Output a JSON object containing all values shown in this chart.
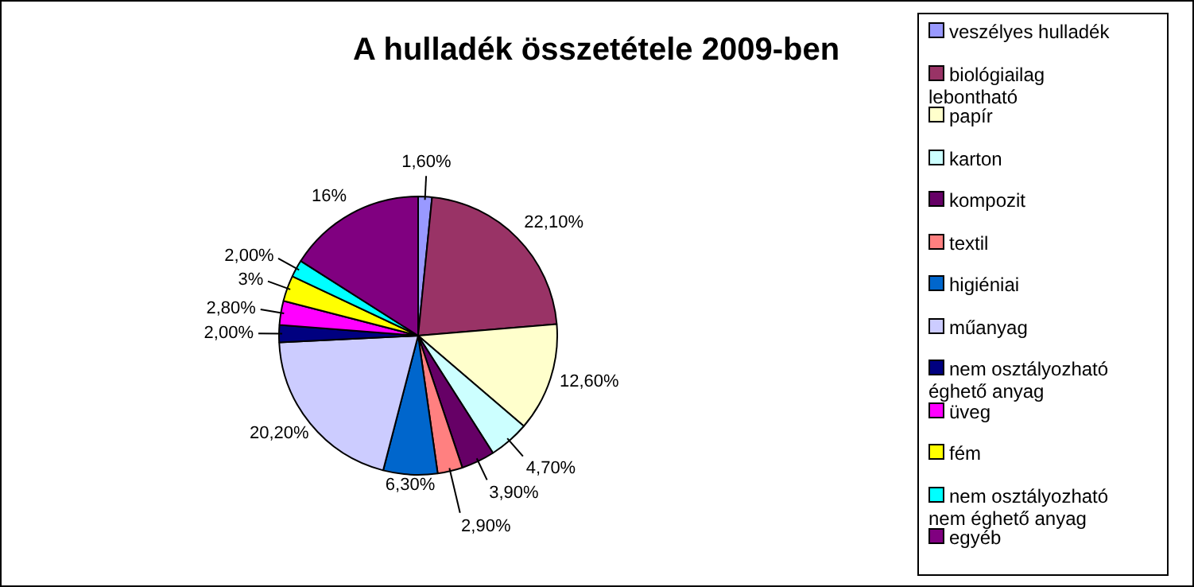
{
  "chart_data": {
    "type": "pie",
    "title": "A hulladék összetétele 2009-ben",
    "categories": [
      "veszélyes hulladék",
      "biológiailag lebontható",
      "papír",
      "karton",
      "kompozit",
      "textil",
      "higiéniai",
      "műanyag",
      "nem osztályozható éghető anyag",
      "üveg",
      "fém",
      "nem osztályozható nem éghető anyag",
      "egyéb"
    ],
    "values": [
      1.6,
      22.1,
      12.6,
      4.7,
      3.9,
      2.9,
      6.3,
      20.2,
      2.0,
      2.8,
      3,
      2.0,
      16
    ],
    "value_labels": [
      "1,60%",
      "22,10%",
      "12,60%",
      "4,70%",
      "3,90%",
      "2,90%",
      "6,30%",
      "20,20%",
      "2,00%",
      "2,80%",
      "3%",
      "2,00%",
      "16%"
    ],
    "colors": [
      "#9999ff",
      "#993366",
      "#ffffcc",
      "#ccffff",
      "#660066",
      "#ff8080",
      "#0066cc",
      "#ccccff",
      "#000080",
      "#ff00ff",
      "#ffff00",
      "#00ffff",
      "#800080"
    ],
    "legend": "right"
  }
}
